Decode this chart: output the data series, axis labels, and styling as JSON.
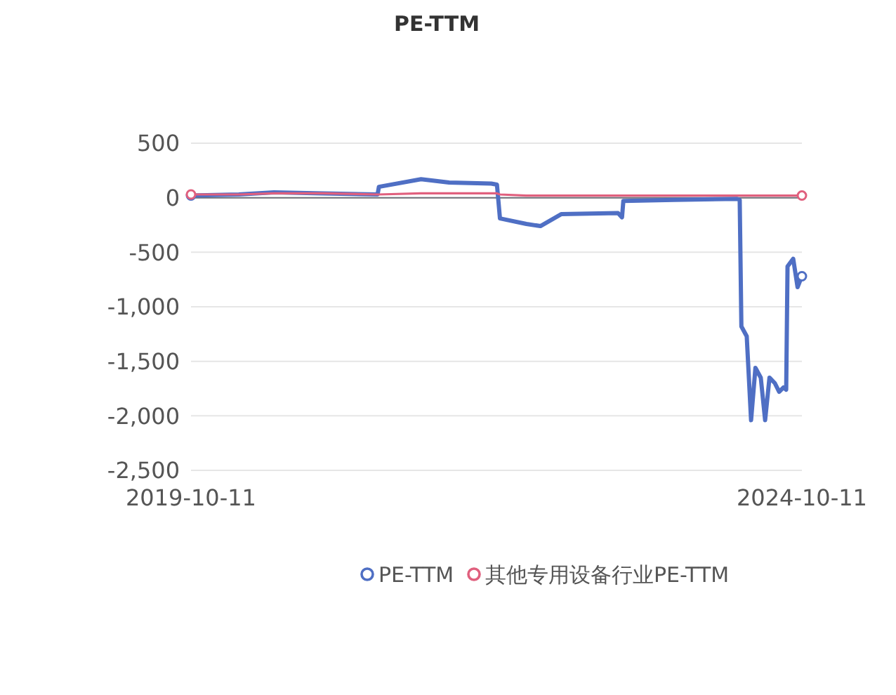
{
  "chart_data": {
    "type": "line",
    "title": "PE-TTM",
    "x": [
      "2019-10-11",
      "2020-03-02",
      "2020-06-15",
      "2020-11-09",
      "2021-04-21",
      "2021-04-25",
      "2021-08-29",
      "2021-11-21",
      "2022-03-27",
      "2022-04-13",
      "2022-04-22",
      "2022-07-10",
      "2022-08-21",
      "2022-10-23",
      "2023-04-10",
      "2023-04-22",
      "2023-04-26",
      "2023-09-24",
      "2024-03-31",
      "2024-04-08",
      "2024-04-13",
      "2024-04-29",
      "2024-05-12",
      "2024-05-25",
      "2024-06-10",
      "2024-06-23",
      "2024-07-06",
      "2024-07-22",
      "2024-08-04",
      "2024-08-17",
      "2024-08-25",
      "2024-08-29",
      "2024-09-15",
      "2024-09-28",
      "2024-10-11"
    ],
    "series": [
      {
        "name": "PE-TTM",
        "color": "#4f6fc4",
        "values": [
          20,
          30,
          50,
          40,
          30,
          100,
          170,
          140,
          130,
          120,
          -190,
          -240,
          -260,
          -150,
          -140,
          -180,
          -30,
          -20,
          -10,
          -20,
          -1180,
          -1270,
          -2040,
          -1560,
          -1650,
          -2040,
          -1650,
          -1700,
          -1780,
          -1740,
          -1760,
          -630,
          -560,
          -820,
          -720
        ]
      },
      {
        "name": "其他专用设备行业PE-TTM",
        "color": "#e0607e",
        "values": [
          30,
          30,
          40,
          40,
          30,
          30,
          40,
          40,
          40,
          40,
          30,
          20,
          20,
          20,
          20,
          20,
          20,
          20,
          20,
          20,
          20,
          20,
          20,
          20,
          20,
          20,
          20,
          20,
          20,
          20,
          20,
          20,
          20,
          20,
          20
        ]
      }
    ],
    "xlim": [
      "2019-10-11",
      "2024-10-11"
    ],
    "xticks": [
      {
        "value": "2019-10-11",
        "label": "2019-10-11"
      },
      {
        "value": "2024-10-11",
        "label": "2024-10-11"
      }
    ],
    "ylim": [
      -2500,
      500
    ],
    "yticks": [
      500,
      0,
      -500,
      {
        "value": -1000,
        "label": "-1,000"
      },
      {
        "value": -1500,
        "label": "-1,500"
      },
      {
        "value": -2000,
        "label": "-2,000"
      },
      {
        "value": -2500,
        "label": "-2,500"
      }
    ],
    "grid": "y",
    "legend": "bottom",
    "line_style": "solid"
  }
}
